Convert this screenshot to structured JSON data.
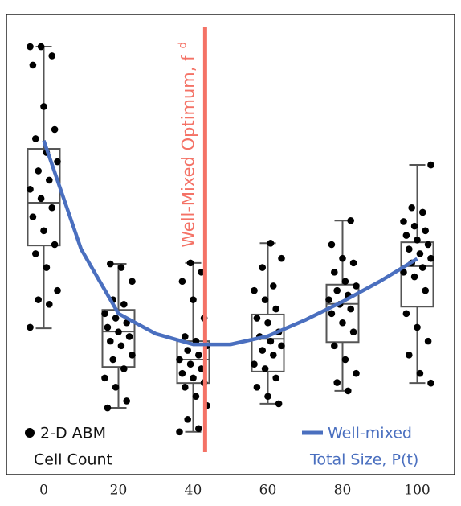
{
  "chart_data": {
    "type": "box",
    "xlim": [
      -10,
      110
    ],
    "ylim": [
      0,
      100
    ],
    "xticks": [
      0,
      20,
      40,
      60,
      80,
      100
    ],
    "box_color": "#555555",
    "groups": [
      {
        "x": 0,
        "whisker_low": 31.8,
        "q1": 49.8,
        "median": 59.1,
        "q3": 70.8,
        "whisker_high": 93,
        "points": [
          93,
          93,
          91,
          89,
          80,
          75,
          73,
          70,
          68,
          66,
          64,
          62,
          60,
          58,
          56,
          53,
          50,
          48,
          45,
          40,
          38,
          37,
          32
        ]
      },
      {
        "x": 20,
        "whisker_low": 14.5,
        "q1": 23.4,
        "median": 31.1,
        "q3": 35.8,
        "whisker_high": 45.8,
        "points": [
          45.8,
          45,
          42,
          38,
          37,
          35,
          34,
          33,
          32,
          31,
          30,
          29,
          28,
          26,
          25,
          23,
          21,
          19,
          16,
          14.5
        ]
      },
      {
        "x": 40,
        "whisker_low": 9.3,
        "q1": 19.9,
        "median": 25,
        "q3": 29,
        "whisker_high": 46,
        "points": [
          46,
          44,
          42,
          38,
          34,
          30,
          29,
          28,
          27,
          26,
          25,
          24,
          23,
          22,
          21,
          20,
          19,
          17,
          15,
          12,
          10,
          9.3
        ]
      },
      {
        "x": 60,
        "whisker_low": 15.4,
        "q1": 22.4,
        "median": 29.5,
        "q3": 34.8,
        "whisker_high": 50.3,
        "points": [
          50.3,
          47,
          45,
          41,
          40,
          38,
          36,
          34,
          33,
          31,
          30,
          29,
          28,
          27,
          26,
          24,
          23,
          21,
          19,
          17,
          15.4
        ]
      },
      {
        "x": 80,
        "whisker_low": 18.2,
        "q1": 28.8,
        "median": 37.1,
        "q3": 41.3,
        "whisker_high": 55.2,
        "points": [
          55.2,
          50,
          47,
          46,
          44,
          42,
          41,
          40,
          39,
          38,
          37,
          36,
          35,
          33,
          31,
          28,
          25,
          22,
          20,
          18.2
        ]
      },
      {
        "x": 100,
        "whisker_low": 19.9,
        "q1": 36.5,
        "median": 45.3,
        "q3": 50.5,
        "whisker_high": 67.3,
        "points": [
          67.3,
          58,
          57,
          55,
          54,
          53,
          52,
          51,
          50,
          49,
          48,
          47,
          46,
          45,
          44,
          43,
          40,
          35,
          32,
          29,
          26,
          22,
          19.9
        ]
      }
    ],
    "points_legend": {
      "name": [
        "2-D ABM",
        "Cell Count"
      ],
      "color": "#000000"
    },
    "curve": {
      "name": [
        "Well-mixed",
        "Total Size, P(t)"
      ],
      "color": "#4a6fbf",
      "x": [
        0,
        10,
        20,
        30,
        40,
        50,
        60,
        70,
        80,
        90,
        100
      ],
      "y": [
        72.6,
        49,
        35,
        30.6,
        28.3,
        28.3,
        30.1,
        33.6,
        37.6,
        42,
        46.9
      ]
    },
    "vline": {
      "x": 43.2,
      "label": "Well-Mixed Optimum, f",
      "subscript": "d",
      "color": "#f47266"
    }
  }
}
